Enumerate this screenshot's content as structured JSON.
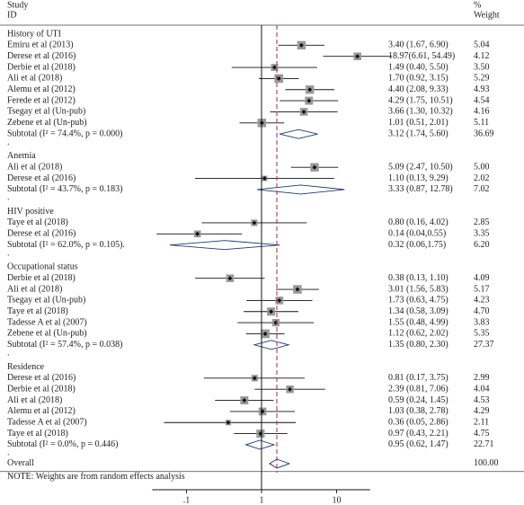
{
  "chart_data": {
    "type": "forest",
    "header": {
      "study": "Study",
      "id": "ID",
      "percent": "%",
      "weight": "Weight"
    },
    "separator": ".",
    "groups": [
      {
        "name": "History of UTI",
        "studies": [
          {
            "label": "Emiru et al (2013)",
            "est": 3.4,
            "lo": 1.67,
            "hi": 6.9,
            "ci_label": "3.40 (1.67, 6.90)",
            "weight": "5.04"
          },
          {
            "label": "Derese et al (2016)",
            "est": 18.97,
            "lo": 6.61,
            "hi": 54.49,
            "ci_label": "18.97(6.61, 54.49)",
            "weight": "4.12"
          },
          {
            "label": "Derbie et al (2018)",
            "est": 1.49,
            "lo": 0.4,
            "hi": 5.5,
            "ci_label": "1.49 (0.40, 5.50)",
            "weight": "3.50"
          },
          {
            "label": "Ali et al (2018)",
            "est": 1.7,
            "lo": 0.92,
            "hi": 3.15,
            "ci_label": "1.70 (0.92, 3.15)",
            "weight": "5.29"
          },
          {
            "label": "Alemu et al (2012)",
            "est": 4.4,
            "lo": 2.08,
            "hi": 9.33,
            "ci_label": "4.40 (2.08, 9.33)",
            "weight": "4.93"
          },
          {
            "label": "Ferede et al (2012)",
            "est": 4.29,
            "lo": 1.75,
            "hi": 10.51,
            "ci_label": "4.29 (1.75, 10.51)",
            "weight": "4.54"
          },
          {
            "label": "Tsegay et al (Un-pub)",
            "est": 3.66,
            "lo": 1.3,
            "hi": 10.32,
            "ci_label": "3.66 (1.30, 10.32)",
            "weight": "4.16"
          },
          {
            "label": "Zebene et al (Un-pub)",
            "est": 1.01,
            "lo": 0.51,
            "hi": 2.01,
            "ci_label": "1.01 (0.51, 2.01)",
            "weight": "5.11"
          }
        ],
        "subtotal": {
          "label": "Subtotal (I² = 74.4%, p = 0.000)",
          "est": 3.12,
          "lo": 1.74,
          "hi": 5.6,
          "ci_label": "3.12 (1.74, 5.60)",
          "weight": "36.69"
        }
      },
      {
        "name": "Anemia",
        "studies": [
          {
            "label": "Ali et al (2018)",
            "est": 5.09,
            "lo": 2.47,
            "hi": 10.5,
            "ci_label": "5.09 (2.47, 10.50)",
            "weight": "5.00"
          },
          {
            "label": "Derese et al (2016)",
            "est": 1.1,
            "lo": 0.13,
            "hi": 9.29,
            "ci_label": "1.10 (0.13, 9.29)",
            "weight": "2.02"
          }
        ],
        "subtotal": {
          "label": "Subtotal (I² = 43.7%, p = 0.183)",
          "est": 3.33,
          "lo": 0.87,
          "hi": 12.78,
          "ci_label": "3.33 (0.87, 12.78)",
          "weight": "7.02"
        }
      },
      {
        "name": "HIV positive",
        "studies": [
          {
            "label": "Taye et al (2018)",
            "est": 0.8,
            "lo": 0.16,
            "hi": 4.02,
            "ci_label": "0.80 (0.16, 4.02)",
            "weight": "2.85"
          },
          {
            "label": "Derese et al (2016)",
            "est": 0.14,
            "lo": 0.04,
            "hi": 0.55,
            "ci_label": "0.14 (0.04,0.55)",
            "weight": "3.35"
          }
        ],
        "subtotal": {
          "label": "Subtotal (I² = 62.0%, p = 0.105).",
          "est": 0.32,
          "lo": 0.06,
          "hi": 1.75,
          "ci_label": "0.32 (0.06,1.75)",
          "weight": "6.20"
        }
      },
      {
        "name": "Occupational status",
        "studies": [
          {
            "label": "Derbie et al (2018)",
            "est": 0.38,
            "lo": 0.13,
            "hi": 1.1,
            "ci_label": "0.38 (0.13, 1.10)",
            "weight": "4.09"
          },
          {
            "label": "Ali et al (2018)",
            "est": 3.01,
            "lo": 1.56,
            "hi": 5.83,
            "ci_label": "3.01 (1.56, 5.83)",
            "weight": "5.17"
          },
          {
            "label": "Tsegay et al (Un-pub)",
            "est": 1.73,
            "lo": 0.63,
            "hi": 4.75,
            "ci_label": "1.73 (0.63, 4.75)",
            "weight": "4.23"
          },
          {
            "label": "Taye et al (2018)",
            "est": 1.34,
            "lo": 0.58,
            "hi": 3.09,
            "ci_label": "1.34 (0.58, 3.09)",
            "weight": "4.70"
          },
          {
            "label": "Tadesse A et al (2007)",
            "est": 1.55,
            "lo": 0.48,
            "hi": 4.99,
            "ci_label": "1.55 (0.48, 4.99)",
            "weight": "3.83"
          },
          {
            "label": "Zebene et al (Un-pub)",
            "est": 1.12,
            "lo": 0.62,
            "hi": 2.02,
            "ci_label": "1.12 (0.62, 2.02)",
            "weight": "5.35"
          }
        ],
        "subtotal": {
          "label": "Subtotal (I² = 57.4%, p = 0.038)",
          "est": 1.35,
          "lo": 0.8,
          "hi": 2.3,
          "ci_label": "1.35 (0.80, 2.30)",
          "weight": "27.37"
        }
      },
      {
        "name": "Residence",
        "studies": [
          {
            "label": "Derese et al (2016)",
            "est": 0.81,
            "lo": 0.17,
            "hi": 3.75,
            "ci_label": "0.81 (0.17, 3.75)",
            "weight": "2.99"
          },
          {
            "label": "Derbie et al (2018)",
            "est": 2.39,
            "lo": 0.81,
            "hi": 7.06,
            "ci_label": "2.39 (0.81, 7.06)",
            "weight": "4.04"
          },
          {
            "label": "Ali et al (2018)",
            "est": 0.59,
            "lo": 0.24,
            "hi": 1.45,
            "ci_label": "0.59 (0.24, 1.45)",
            "weight": "4.53"
          },
          {
            "label": "Alemu et al (2012)",
            "est": 1.03,
            "lo": 0.38,
            "hi": 2.78,
            "ci_label": "1.03 (0.38, 2.78)",
            "weight": "4.29"
          },
          {
            "label": "Tadesse A et al (2007)",
            "est": 0.36,
            "lo": 0.05,
            "hi": 2.86,
            "ci_label": "0.36 (0.05, 2.86)",
            "weight": "2.11"
          },
          {
            "label": "Taye et al (2018)",
            "est": 0.97,
            "lo": 0.43,
            "hi": 2.21,
            "ci_label": "0.97 (0.43, 2.21)",
            "weight": "4.75"
          }
        ],
        "subtotal": {
          "label": "Subtotal (I² = 0.0%, p = 0.446)",
          "est": 0.95,
          "lo": 0.62,
          "hi": 1.47,
          "ci_label": "0.95 (0.62, 1.47)",
          "weight": "22.71"
        }
      }
    ],
    "overall": {
      "label": "Overall",
      "est": 1.6,
      "lo": 1.28,
      "hi": 2.35,
      "weight": "100.00"
    },
    "note": "NOTE: Weights are from random effects analysis",
    "log_x": true,
    "xlim": [
      0.035,
      28
    ],
    "xticks": [
      {
        "value": 0.1,
        "label": ".1"
      },
      1,
      10
    ],
    "null_line": 1,
    "marker_color": "#999999",
    "overall_line_color": "#a0405a"
  }
}
